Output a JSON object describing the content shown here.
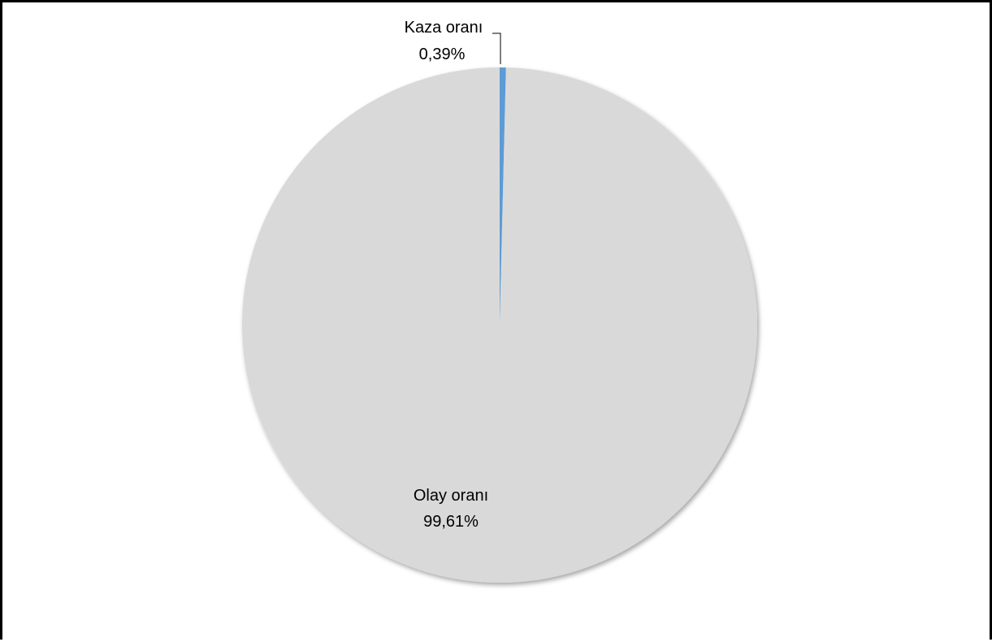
{
  "chart_data": {
    "type": "pie",
    "title": "",
    "slices": [
      {
        "label": "Kaza oranı",
        "value": 0.39,
        "value_text": "0,39%",
        "color": "#5b9bd5"
      },
      {
        "label": "Olay oranı",
        "value": 99.61,
        "value_text": "99,61%",
        "color": "#d9d9d9"
      }
    ],
    "legend": "none",
    "data_labels": "category-and-percent"
  }
}
